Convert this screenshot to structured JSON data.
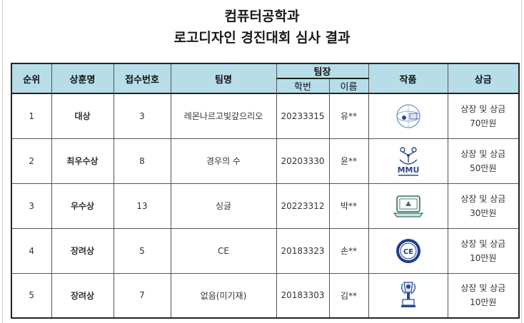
{
  "title": {
    "line1": "컴퓨터공학과",
    "line2": "로고디자인 경진대회 심사 결과"
  },
  "headers": {
    "rank": "순위",
    "award": "상훈명",
    "entry_no": "접수번호",
    "team_name": "팀명",
    "leader": "팀장",
    "student_id": "학번",
    "name": "이름",
    "work": "작품",
    "prize": "상금"
  },
  "rows": [
    {
      "rank": "1",
      "award": "대상",
      "entry_no": "3",
      "team_name": "레몬나르고빛갚으리오",
      "student_id": "20233315",
      "name": "유**",
      "prize_line1": "상장 및 상금",
      "prize_line2": "70만원",
      "logo": "globe-logo-icon"
    },
    {
      "rank": "2",
      "award": "최우수상",
      "entry_no": "8",
      "team_name": "경우의 수",
      "student_id": "20203330",
      "name": "윤**",
      "prize_line1": "상장 및 상금",
      "prize_line2": "50만원",
      "logo": "mmu-network-logo-icon",
      "logo_text": "MMU"
    },
    {
      "rank": "3",
      "award": "우수상",
      "entry_no": "13",
      "team_name": "싱글",
      "student_id": "20223312",
      "name": "박**",
      "prize_line1": "상장 및 상금",
      "prize_line2": "30만원",
      "logo": "laptop-logo-icon"
    },
    {
      "rank": "4",
      "award": "장려상",
      "entry_no": "5",
      "team_name": "CE",
      "student_id": "20183323",
      "name": "손**",
      "prize_line1": "상장 및 상금",
      "prize_line2": "10만원",
      "logo": "ce-emblem-logo-icon",
      "logo_text": "CE"
    },
    {
      "rank": "5",
      "award": "장려상",
      "entry_no": "7",
      "team_name": "없음(미기재)",
      "student_id": "20183303",
      "name": "김**",
      "prize_line1": "상장 및 상금",
      "prize_line2": "10만원",
      "logo": "trophy-logo-icon"
    }
  ],
  "colors": {
    "header_bg": "#b7dde8",
    "logo_blue": "#2b4a8c"
  }
}
